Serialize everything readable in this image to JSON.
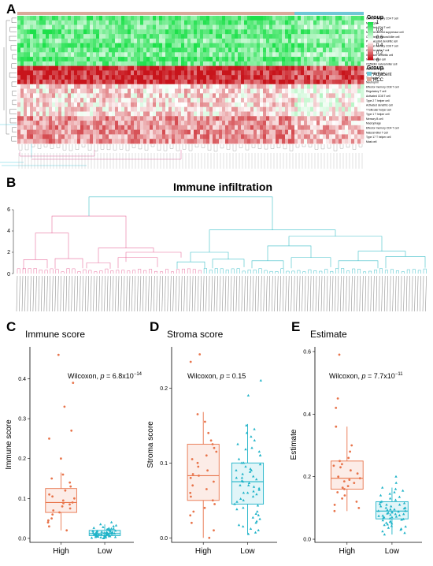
{
  "panels": {
    "a": {
      "letter": "A"
    },
    "b": {
      "letter": "B",
      "title": "Immune infiltration",
      "yticks": [
        "0",
        "2",
        "4",
        "6"
      ]
    },
    "c": {
      "letter": "C"
    },
    "d": {
      "letter": "D"
    },
    "e": {
      "letter": "E"
    }
  },
  "heatmap": {
    "legend_title": "Group",
    "scale_ticks": [
      "1",
      "0.8",
      "0.6",
      "0.4",
      "0.2",
      "0"
    ],
    "group_legend_title": "Group",
    "group_legend": [
      {
        "label": "Adjacent",
        "color": "#6fc7d6"
      },
      {
        "label": "HCC",
        "color": "#d9a99a"
      }
    ],
    "rows": [
      "Central memory CD4 T cell",
      "Monocyte",
      "Activated CD4 T cell",
      "Myeloid derived suppressor cell",
      "CD56bright natural killer cell",
      "Plasmacytoid dendritic cell",
      "Central memory CD8 T cell",
      "Gamma delta T cell",
      "Immature dendritic cell",
      "Natural killer cell",
      "CD56dim natural killer cell",
      "Activated B cell",
      "Immature B cell",
      "T follicular",
      "Neutrophil",
      "Effector memory CD8 T cell",
      "Regulatory T cell",
      "Activated CD8 T cell",
      "Type 2 T helper cell",
      "Activated dendritic cell",
      "T follicular helper cell",
      "Type 1 T helper cell",
      "Memory B cell",
      "Macrophage",
      "Effector memory CD4 T cell",
      "Natural killer T cell",
      "Type 17 T helper cell",
      "Mast cell"
    ],
    "colors": {
      "high": "#1de04a",
      "mid": "#ffffff",
      "low": "#c8141b"
    }
  },
  "chart_data": [
    {
      "type": "box",
      "title": "Immune score",
      "ylabel": "Immune score",
      "categories": [
        "High",
        "Low"
      ],
      "yticks": [
        0.0,
        0.1,
        0.2,
        0.3,
        0.4
      ],
      "ylim": [
        -0.01,
        0.48
      ],
      "annotation": {
        "prefix": "Wilcoxon, ",
        "p": "p",
        "value": " = 6.8x10",
        "exp": "−14"
      },
      "series": [
        {
          "name": "High",
          "color": "#e8744b",
          "box": {
            "q1": 0.065,
            "median": 0.09,
            "q3": 0.125,
            "whisker_low": 0.02,
            "whisker_high": 0.165
          },
          "points": [
            0.46,
            0.39,
            0.33,
            0.27,
            0.25,
            0.2,
            0.16,
            0.15,
            0.14,
            0.13,
            0.12,
            0.11,
            0.105,
            0.1,
            0.095,
            0.09,
            0.088,
            0.085,
            0.08,
            0.075,
            0.07,
            0.065,
            0.06,
            0.05,
            0.045,
            0.04,
            0.03,
            0.02
          ]
        },
        {
          "name": "Low",
          "color": "#1fb3c8",
          "box": {
            "q1": 0.007,
            "median": 0.012,
            "q3": 0.02,
            "whisker_low": 0.0,
            "whisker_high": 0.035
          },
          "points": [
            0.04,
            0.035,
            0.032,
            0.03,
            0.028,
            0.026,
            0.025,
            0.024,
            0.022,
            0.021,
            0.02,
            0.019,
            0.018,
            0.017,
            0.016,
            0.015,
            0.015,
            0.014,
            0.014,
            0.013,
            0.013,
            0.012,
            0.012,
            0.011,
            0.011,
            0.01,
            0.01,
            0.01,
            0.009,
            0.009,
            0.008,
            0.008,
            0.007,
            0.007,
            0.006,
            0.006,
            0.005,
            0.005,
            0.004,
            0.004,
            0.003,
            0.003,
            0.002,
            0.002,
            0.001,
            0.001,
            0.0,
            0.015,
            0.018,
            0.022,
            0.012,
            0.009,
            0.016,
            0.011,
            0.007,
            0.013,
            0.02,
            0.024,
            0.006,
            0.014
          ]
        }
      ]
    },
    {
      "type": "box",
      "title": "Stroma score",
      "ylabel": "Stroma score",
      "categories": [
        "High",
        "Low"
      ],
      "yticks": [
        0.0,
        0.1,
        0.2
      ],
      "ylim": [
        -0.006,
        0.255
      ],
      "annotation": {
        "prefix": "Wilcoxon, ",
        "p": "p",
        "value": " = 0.15",
        "exp": ""
      },
      "series": [
        {
          "name": "High",
          "color": "#e8744b",
          "box": {
            "q1": 0.05,
            "median": 0.083,
            "q3": 0.125,
            "whisker_low": 0.0,
            "whisker_high": 0.168
          },
          "points": [
            0.245,
            0.235,
            0.165,
            0.155,
            0.14,
            0.13,
            0.125,
            0.12,
            0.115,
            0.11,
            0.105,
            0.1,
            0.095,
            0.09,
            0.085,
            0.083,
            0.08,
            0.075,
            0.07,
            0.065,
            0.06,
            0.055,
            0.05,
            0.045,
            0.04,
            0.035,
            0.03,
            0.02,
            0.01,
            0.0
          ]
        },
        {
          "name": "Low",
          "color": "#1fb3c8",
          "box": {
            "q1": 0.045,
            "median": 0.075,
            "q3": 0.1,
            "whisker_low": 0.005,
            "whisker_high": 0.152
          },
          "points": [
            0.21,
            0.19,
            0.15,
            0.145,
            0.14,
            0.135,
            0.13,
            0.125,
            0.12,
            0.118,
            0.115,
            0.11,
            0.105,
            0.1,
            0.098,
            0.095,
            0.092,
            0.09,
            0.088,
            0.085,
            0.082,
            0.08,
            0.078,
            0.076,
            0.075,
            0.073,
            0.07,
            0.068,
            0.066,
            0.064,
            0.062,
            0.06,
            0.058,
            0.055,
            0.052,
            0.05,
            0.048,
            0.045,
            0.043,
            0.04,
            0.038,
            0.035,
            0.032,
            0.03,
            0.027,
            0.025,
            0.022,
            0.02,
            0.017,
            0.015,
            0.012,
            0.01,
            0.007,
            0.005,
            0.07,
            0.09,
            0.11,
            0.06,
            0.08,
            0.1
          ]
        }
      ]
    },
    {
      "type": "box",
      "title": "Estimate",
      "ylabel": "Estimate",
      "categories": [
        "High",
        "Low"
      ],
      "yticks": [
        0.0,
        0.2,
        0.4,
        0.6
      ],
      "ylim": [
        -0.01,
        0.615
      ],
      "annotation": {
        "prefix": "Wilcoxon, ",
        "p": "p",
        "value": " = 7.7x10",
        "exp": "−11"
      },
      "series": [
        {
          "name": "High",
          "color": "#e8744b",
          "box": {
            "q1": 0.16,
            "median": 0.195,
            "q3": 0.25,
            "whisker_low": 0.09,
            "whisker_high": 0.36
          },
          "points": [
            0.59,
            0.45,
            0.42,
            0.36,
            0.3,
            0.28,
            0.26,
            0.25,
            0.24,
            0.235,
            0.23,
            0.22,
            0.21,
            0.2,
            0.195,
            0.19,
            0.185,
            0.18,
            0.17,
            0.165,
            0.16,
            0.15,
            0.14,
            0.13,
            0.12,
            0.11,
            0.1,
            0.09
          ]
        },
        {
          "name": "Low",
          "color": "#1fb3c8",
          "box": {
            "q1": 0.065,
            "median": 0.09,
            "q3": 0.12,
            "whisker_low": 0.015,
            "whisker_high": 0.165
          },
          "points": [
            0.2,
            0.18,
            0.165,
            0.16,
            0.155,
            0.15,
            0.145,
            0.14,
            0.135,
            0.13,
            0.125,
            0.12,
            0.118,
            0.115,
            0.112,
            0.11,
            0.105,
            0.1,
            0.098,
            0.095,
            0.093,
            0.09,
            0.088,
            0.086,
            0.084,
            0.082,
            0.08,
            0.078,
            0.076,
            0.074,
            0.072,
            0.07,
            0.068,
            0.066,
            0.064,
            0.062,
            0.06,
            0.057,
            0.055,
            0.052,
            0.05,
            0.047,
            0.045,
            0.042,
            0.04,
            0.036,
            0.033,
            0.03,
            0.025,
            0.02,
            0.015,
            0.09,
            0.1,
            0.08,
            0.11,
            0.07,
            0.095,
            0.085,
            0.075,
            0.105
          ]
        }
      ]
    }
  ]
}
